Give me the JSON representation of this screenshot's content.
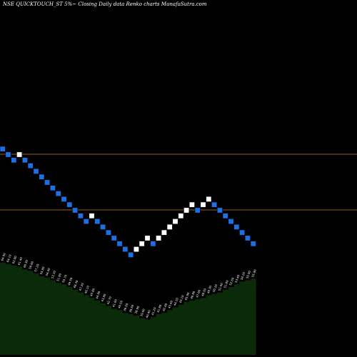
{
  "title": "NSE QUICKTOUCH_ST 5%~   Closing Daily data  Renko   charts MunafaSutra.com",
  "colors": {
    "background": "#000000",
    "up_brick": "#ffffff",
    "down_brick": "#1e6fe6",
    "brick_border": "#000000",
    "reference_line": "#c87f2a",
    "volume_fill": "#0a2a0a",
    "label_text": "#ffffff"
  },
  "chart_data": {
    "type": "renko",
    "brick_direction": [
      "down",
      "down",
      "down",
      "up",
      "down",
      "down",
      "down",
      "down",
      "down",
      "down",
      "down",
      "down",
      "down",
      "down",
      "down",
      "down",
      "up",
      "down",
      "down",
      "down",
      "down",
      "down",
      "down",
      "down",
      "up",
      "up",
      "up",
      "down",
      "up",
      "up",
      "up",
      "up",
      "up",
      "up",
      "up",
      "down",
      "up",
      "up",
      "down",
      "down",
      "down",
      "down",
      "down",
      "down",
      "down",
      "down"
    ],
    "reference_levels": [
      "upper",
      "lower"
    ],
    "volume_values": [
      68,
      67,
      66,
      65,
      63,
      62,
      60,
      58,
      57,
      55,
      53,
      52,
      50,
      48,
      46,
      44,
      42,
      40,
      38,
      36,
      34,
      33,
      31,
      30,
      29,
      27,
      26,
      28,
      30,
      31,
      33,
      35,
      37,
      39,
      40,
      41,
      42,
      44,
      45,
      46,
      48,
      50,
      52,
      54,
      55,
      56
    ],
    "brick_labels": [
      "64.90",
      "64.10",
      "62.80",
      "61.40",
      "60.30",
      "58.60",
      "57.20",
      "55.80",
      "54.40",
      "53.10",
      "51.90",
      "50.70",
      "49.50",
      "48.30",
      "47.20",
      "46.10",
      "45.80",
      "44.90",
      "43.80",
      "42.70",
      "41.60",
      "40.50",
      "39.50",
      "38.60",
      "38.90",
      "39.60",
      "40.40",
      "41.20",
      "41.80",
      "42.60",
      "43.40",
      "44.20",
      "45.10",
      "45.90",
      "46.80",
      "47.60",
      "48.50",
      "49.30",
      "50.20",
      "51.00",
      "51.80",
      "52.60",
      "53.40",
      "54.20",
      "55.00",
      "55.80"
    ]
  }
}
